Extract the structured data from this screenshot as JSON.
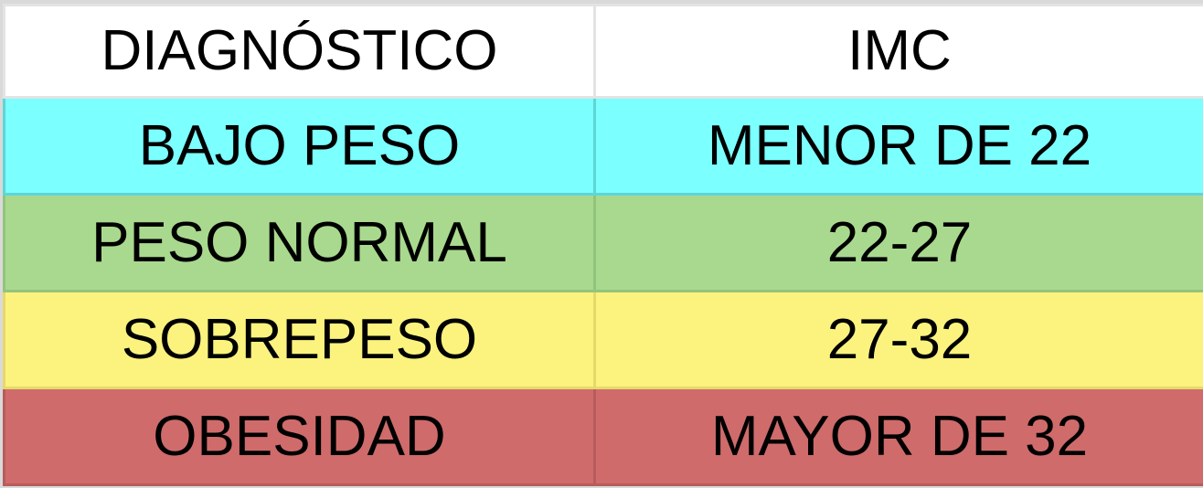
{
  "table": {
    "headers": [
      "DIAGNÓSTICO",
      "IMC"
    ],
    "rows": [
      {
        "diagnostico": "BAJO PESO",
        "imc": "MENOR DE 22",
        "color": "#7bffff"
      },
      {
        "diagnostico": "PESO NORMAL",
        "imc": "22-27",
        "color": "#a9d98e"
      },
      {
        "diagnostico": "SOBREPESO",
        "imc": "27-32",
        "color": "#fbf37d"
      },
      {
        "diagnostico": "OBESIDAD",
        "imc": "MAYOR DE 32",
        "color": "#d06b6b"
      }
    ],
    "header_color": "#ffffff"
  }
}
